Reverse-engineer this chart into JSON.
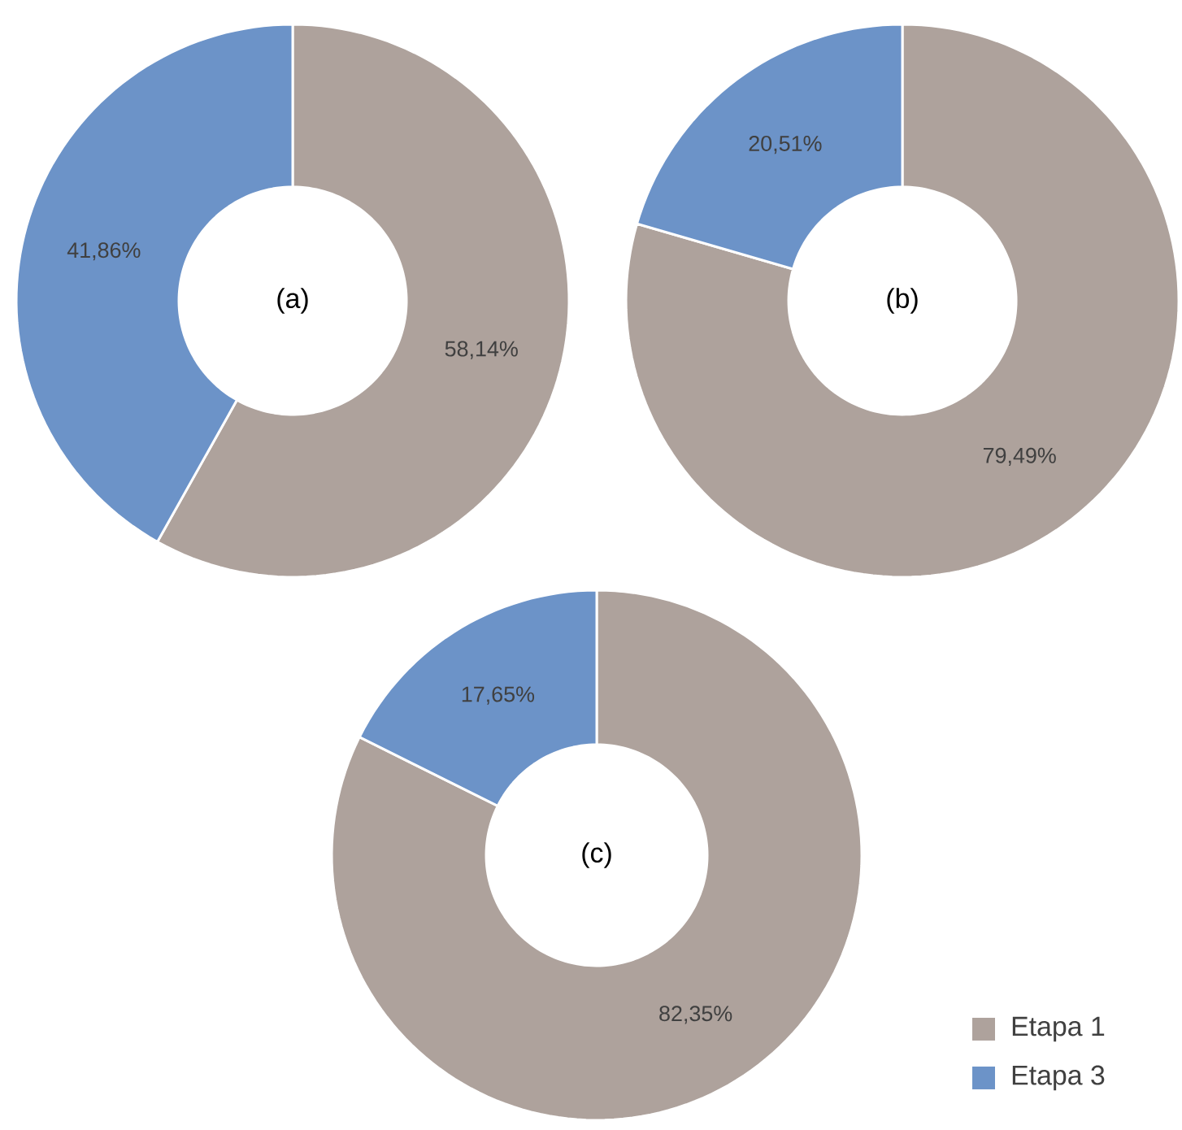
{
  "chart_data": [
    {
      "type": "donut",
      "title": "(a)",
      "categories": [
        null,
        null
      ],
      "values": [
        58.14,
        41.86
      ],
      "value_labels": [
        "58,14%",
        "41,86%"
      ],
      "colors": [
        "#aea29c",
        "#6c93c8"
      ]
    },
    {
      "type": "donut",
      "title": "(b)",
      "categories": [
        null,
        null
      ],
      "values": [
        79.49,
        20.51
      ],
      "value_labels": [
        "79,49%",
        "20,51%"
      ],
      "colors": [
        "#aea29c",
        "#6c93c8"
      ]
    },
    {
      "type": "donut",
      "title": "(c)",
      "categories": [
        "Etapa 1",
        "Etapa 3"
      ],
      "values": [
        82.35,
        17.65
      ],
      "value_labels": [
        "82,35%",
        "17,65%"
      ],
      "colors": [
        "#aea29c",
        "#6c93c8"
      ],
      "legend": "bottom right"
    }
  ]
}
